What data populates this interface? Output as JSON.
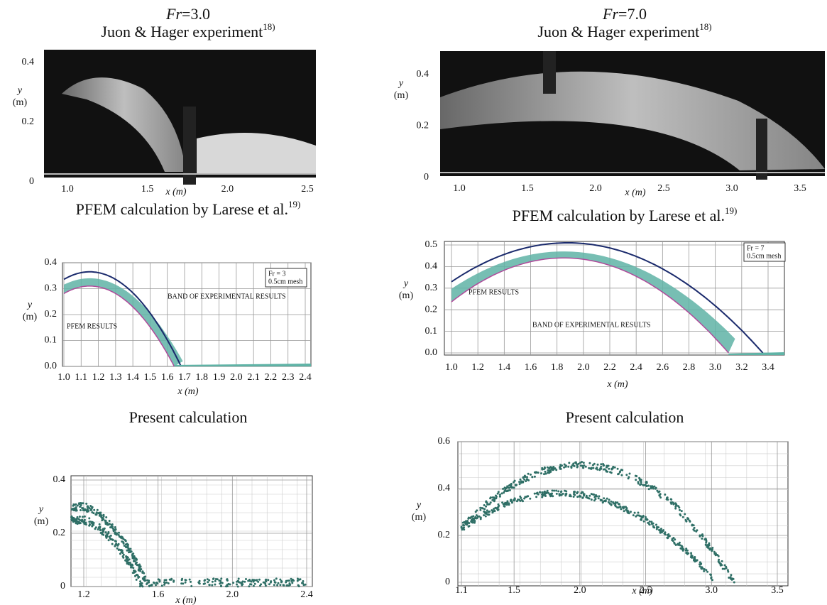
{
  "panels": [
    {
      "header": {
        "symbol": "Fr",
        "value": "=3.0"
      },
      "experiment": {
        "title": "Juon & Hager experiment",
        "ref": "18)",
        "y_label": "y",
        "y_unit": "(m)",
        "x_label": "x (m)",
        "yticks": [
          "0.4",
          "0.2",
          "0"
        ],
        "xticks": [
          "1.0",
          "1.5",
          "2.0",
          "2.5"
        ]
      },
      "pfem": {
        "title": "PFEM calculation by Larese et al.",
        "ref": "19)",
        "y_label": "y",
        "y_unit": "(m)",
        "x_label": "x (m)",
        "yticks": [
          "0.4",
          "0.3",
          "0.2",
          "0.1",
          "0.0"
        ],
        "xticks": [
          "1.0",
          "1.1",
          "1.2",
          "1.3",
          "1.4",
          "1.5",
          "1.6",
          "1.7",
          "1.8",
          "1.9",
          "2.0",
          "2.1",
          "2.2",
          "2.3",
          "2.4"
        ],
        "legend": [
          "Fr = 3",
          "0.5cm mesh"
        ],
        "band_label": "BAND OF EXPERIMENTAL RESULTS",
        "result_label": "PFEM RESULTS"
      },
      "present": {
        "title": "Present calculation",
        "y_label": "y",
        "y_unit": "(m)",
        "x_label": "x (m)",
        "yticks": [
          "0.4",
          "0.2",
          "0"
        ],
        "xticks": [
          "1.2",
          "1.6",
          "2.0",
          "2.4"
        ]
      }
    },
    {
      "header": {
        "symbol": "Fr",
        "value": "=7.0"
      },
      "experiment": {
        "title": "Juon & Hager experiment",
        "ref": "18)",
        "y_label": "y",
        "y_unit": "(m)",
        "x_label": "x (m)",
        "yticks": [
          "0.4",
          "0.2",
          "0"
        ],
        "xticks": [
          "1.0",
          "1.5",
          "2.0",
          "2.5",
          "3.0",
          "3.5"
        ]
      },
      "pfem": {
        "title": "PFEM calculation by Larese et al.",
        "ref": "19)",
        "y_label": "y",
        "y_unit": "(m)",
        "x_label": "x (m)",
        "yticks": [
          "0.5",
          "0.4",
          "0.3",
          "0.2",
          "0.1",
          "0.0"
        ],
        "xticks": [
          "1.0",
          "1.2",
          "1.4",
          "1.6",
          "1.8",
          "2.0",
          "2.2",
          "2.4",
          "2.6",
          "2.8",
          "3.0",
          "3.2",
          "3.4"
        ],
        "legend": [
          "Fr = 7",
          "0.5cm mesh"
        ],
        "band_label": "BAND OF EXPERIMENTAL RESULTS",
        "result_label": "PFEM RESULTS"
      },
      "present": {
        "title": "Present calculation",
        "y_label": "y",
        "y_unit": "(m)",
        "x_label": "x (m)",
        "yticks": [
          "0.6",
          "0.4",
          "0.2",
          "0"
        ],
        "xticks": [
          "1.1",
          "1.5",
          "2.0",
          "2.5",
          "3.0",
          "3.5"
        ]
      }
    }
  ]
}
